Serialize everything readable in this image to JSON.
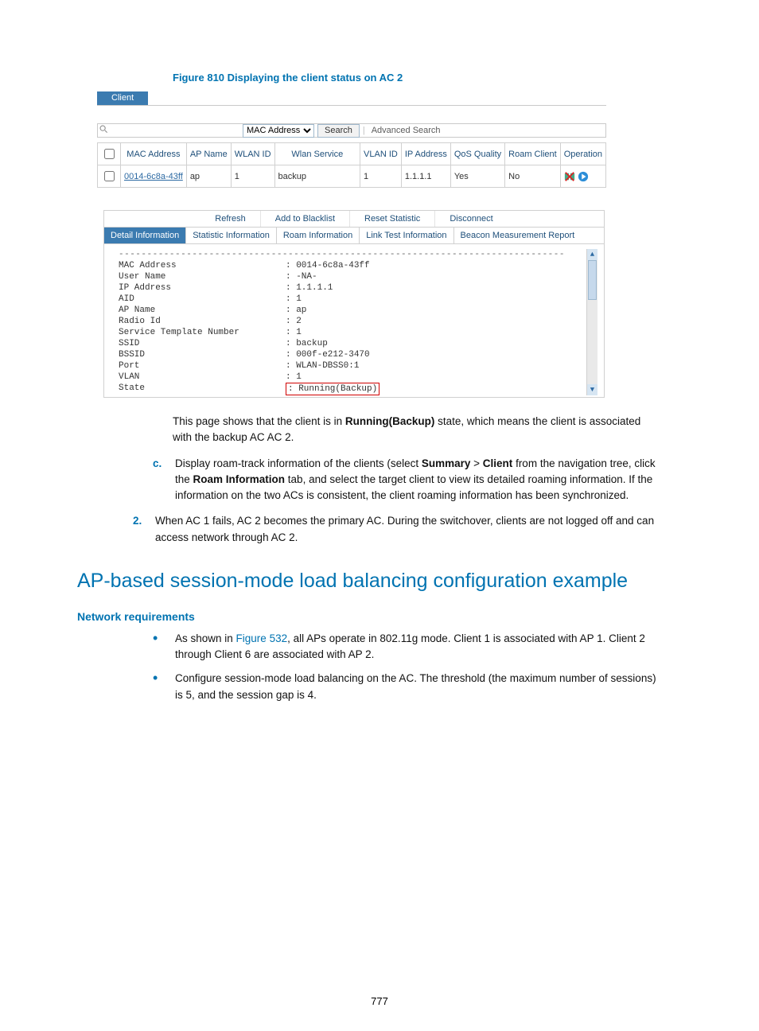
{
  "figure_title": "Figure 810 Displaying the client status on AC 2",
  "screenshot": {
    "tab_label": "Client",
    "search": {
      "select_value": "MAC Address",
      "search_btn": "Search",
      "adv_link": "Advanced Search"
    },
    "grid": {
      "headers": [
        "MAC Address",
        "AP Name",
        "WLAN ID",
        "Wlan Service",
        "VLAN ID",
        "IP Address",
        "QoS Quality",
        "Roam Client",
        "Operation"
      ],
      "row": {
        "mac": "0014-6c8a-43ff",
        "ap_name": "ap",
        "wlan_id": "1",
        "wlan_service": "backup",
        "vlan_id": "1",
        "ip": "1.1.1.1",
        "qos": "Yes",
        "roam": "No"
      }
    },
    "action_bar": [
      "Refresh",
      "Add to Blacklist",
      "Reset Statistic",
      "Disconnect"
    ],
    "subtabs": [
      "Detail Information",
      "Statistic Information",
      "Roam Information",
      "Link Test Information",
      "Beacon Measurement Report"
    ],
    "details": [
      {
        "k": "MAC Address",
        "v": "0014-6c8a-43ff"
      },
      {
        "k": "User Name",
        "v": "-NA-"
      },
      {
        "k": "IP Address",
        "v": "1.1.1.1"
      },
      {
        "k": "AID",
        "v": "1"
      },
      {
        "k": "AP Name",
        "v": "ap"
      },
      {
        "k": "Radio Id",
        "v": "2"
      },
      {
        "k": "Service Template Number",
        "v": "1"
      },
      {
        "k": "SSID",
        "v": "backup"
      },
      {
        "k": "BSSID",
        "v": "000f-e212-3470"
      },
      {
        "k": "Port",
        "v": "WLAN-DBSS0:1"
      },
      {
        "k": "VLAN",
        "v": "1"
      },
      {
        "k": "State",
        "v": "Running(Backup)",
        "boxed": true
      }
    ]
  },
  "para1_pre": "This page shows that the client is in ",
  "para1_bold": "Running(Backup)",
  "para1_post": " state, which means the client is associated with the backup AC AC 2.",
  "item_c_marker": "c.",
  "item_c_pre": "Display roam-track information of the clients (select ",
  "item_c_b1": "Summary",
  "item_c_gt": " > ",
  "item_c_b2": "Client",
  "item_c_mid": " from the navigation tree, click the ",
  "item_c_b3": "Roam Information",
  "item_c_post": " tab, and select the target client to view its detailed roaming information. If the information on the two ACs is consistent, the client roaming information has been synchronized.",
  "item2_marker": "2.",
  "item2_text": "When AC 1 fails, AC 2 becomes the primary AC. During the switchover, clients are not logged off and can access network through AC 2.",
  "h2": "AP-based session-mode load balancing configuration example",
  "h3": "Network requirements",
  "bullet1_pre": "As shown in ",
  "bullet1_link": "Figure 532",
  "bullet1_post": ", all APs operate in 802.11g mode. Client 1 is associated with AP 1. Client 2 through Client 6 are associated with AP 2.",
  "bullet2": "Configure session-mode load balancing on the AC. The threshold (the maximum number of sessions) is 5, and the session gap is 4.",
  "page_number": "777"
}
